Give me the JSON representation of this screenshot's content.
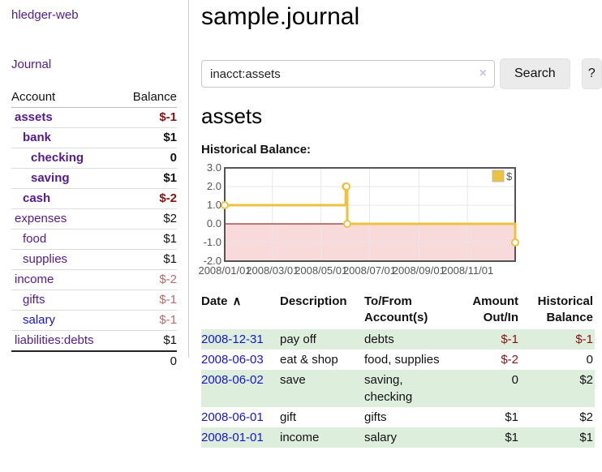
{
  "app": {
    "brand": "hledger-web",
    "nav_journal": "Journal"
  },
  "sidebar": {
    "col_account": "Account",
    "col_balance": "Balance",
    "accounts": [
      {
        "name": "assets",
        "level": 1,
        "bold": true,
        "balance": "$-1",
        "negative": "strong"
      },
      {
        "name": "bank",
        "level": 2,
        "bold": true,
        "balance": "$1"
      },
      {
        "name": "checking",
        "level": 3,
        "bold": true,
        "balance": "0"
      },
      {
        "name": "saving",
        "level": 3,
        "bold": true,
        "balance": "$1"
      },
      {
        "name": "cash",
        "level": 2,
        "bold": true,
        "balance": "$-2",
        "negative": "strong"
      },
      {
        "name": "expenses",
        "level": 1,
        "bold": false,
        "balance": "$2"
      },
      {
        "name": "food",
        "level": 2,
        "bold": false,
        "balance": "$1"
      },
      {
        "name": "supplies",
        "level": 2,
        "bold": false,
        "balance": "$1"
      },
      {
        "name": "income",
        "level": 1,
        "bold": false,
        "balance": "$-2",
        "negative": "soft"
      },
      {
        "name": "gifts",
        "level": 2,
        "bold": false,
        "balance": "$-1",
        "negative": "soft"
      },
      {
        "name": "salary",
        "level": 2,
        "bold": false,
        "balance": "$-1",
        "negative": "soft",
        "link_color": "blue"
      },
      {
        "name": "liabilities:debts",
        "level": 1,
        "bold": false,
        "balance": "$1"
      }
    ],
    "total": "0"
  },
  "header": {
    "title": "sample.journal"
  },
  "search": {
    "value": "inacct:assets",
    "clear_icon": "×",
    "button_label": "Search",
    "help_label": "?"
  },
  "account_page": {
    "heading": "assets",
    "chart_label": "Historical Balance:"
  },
  "chart_data": {
    "type": "line",
    "title": "Historical Balance:",
    "step": true,
    "series": [
      {
        "name": "$",
        "color": "#EDC240",
        "points": [
          {
            "date": "2008-01-01",
            "value": 1
          },
          {
            "date": "2008-06-01",
            "value": 2
          },
          {
            "date": "2008-06-02",
            "value": 2
          },
          {
            "date": "2008-06-03",
            "value": 0
          },
          {
            "date": "2008-12-31",
            "value": -1
          }
        ]
      }
    ],
    "x_range": [
      "2008-01-01",
      "2008-12-31"
    ],
    "x_ticks": [
      "2008/01/01",
      "2008/03/01",
      "2008/05/01",
      "2008/07/01",
      "2008/09/01",
      "2008/11/01"
    ],
    "y_ticks": [
      3.0,
      2.0,
      1.0,
      0.0,
      -1.0,
      -2.0
    ],
    "ylim": [
      -2,
      3
    ],
    "grid_on": true,
    "legend_position": "top-right",
    "legend_label": "$",
    "colors": {
      "series": "#EDC240",
      "negative_fill": "#f9dada",
      "zero_line": "#800000",
      "grid": "#e7e7e7",
      "border": "#545454",
      "tick_text": "#545454"
    }
  },
  "register": {
    "headers": [
      {
        "lines": [
          "Date"
        ],
        "sortable": true
      },
      {
        "lines": [
          "Description"
        ]
      },
      {
        "lines": [
          "To/From",
          "Account(s)"
        ]
      },
      {
        "lines": [
          "Amount",
          "Out/In"
        ],
        "align": "right"
      },
      {
        "lines": [
          "Historical",
          "Balance"
        ],
        "align": "right"
      }
    ],
    "sort_indicator": "∧",
    "rows": [
      {
        "date": "2008-12-31",
        "description": "pay off",
        "accounts": "debts",
        "amount": "$-1",
        "amount_negative": true,
        "balance": "$-1",
        "balance_negative": true,
        "shaded": true
      },
      {
        "date": "2008-06-03",
        "description": "eat & shop",
        "accounts": "food, supplies",
        "amount": "$-2",
        "amount_negative": true,
        "balance": "0",
        "balance_negative": false,
        "shaded": false
      },
      {
        "date": "2008-06-02",
        "description": "save",
        "accounts": "saving,\nchecking",
        "amount": "0",
        "amount_negative": false,
        "balance": "$2",
        "balance_negative": false,
        "shaded": true
      },
      {
        "date": "2008-06-01",
        "description": "gift",
        "accounts": "gifts",
        "amount": "$1",
        "amount_negative": false,
        "balance": "$2",
        "balance_negative": false,
        "shaded": false
      },
      {
        "date": "2008-01-01",
        "description": "income",
        "accounts": "salary",
        "amount": "$1",
        "amount_negative": false,
        "balance": "$1",
        "balance_negative": false,
        "shaded": true
      }
    ]
  }
}
